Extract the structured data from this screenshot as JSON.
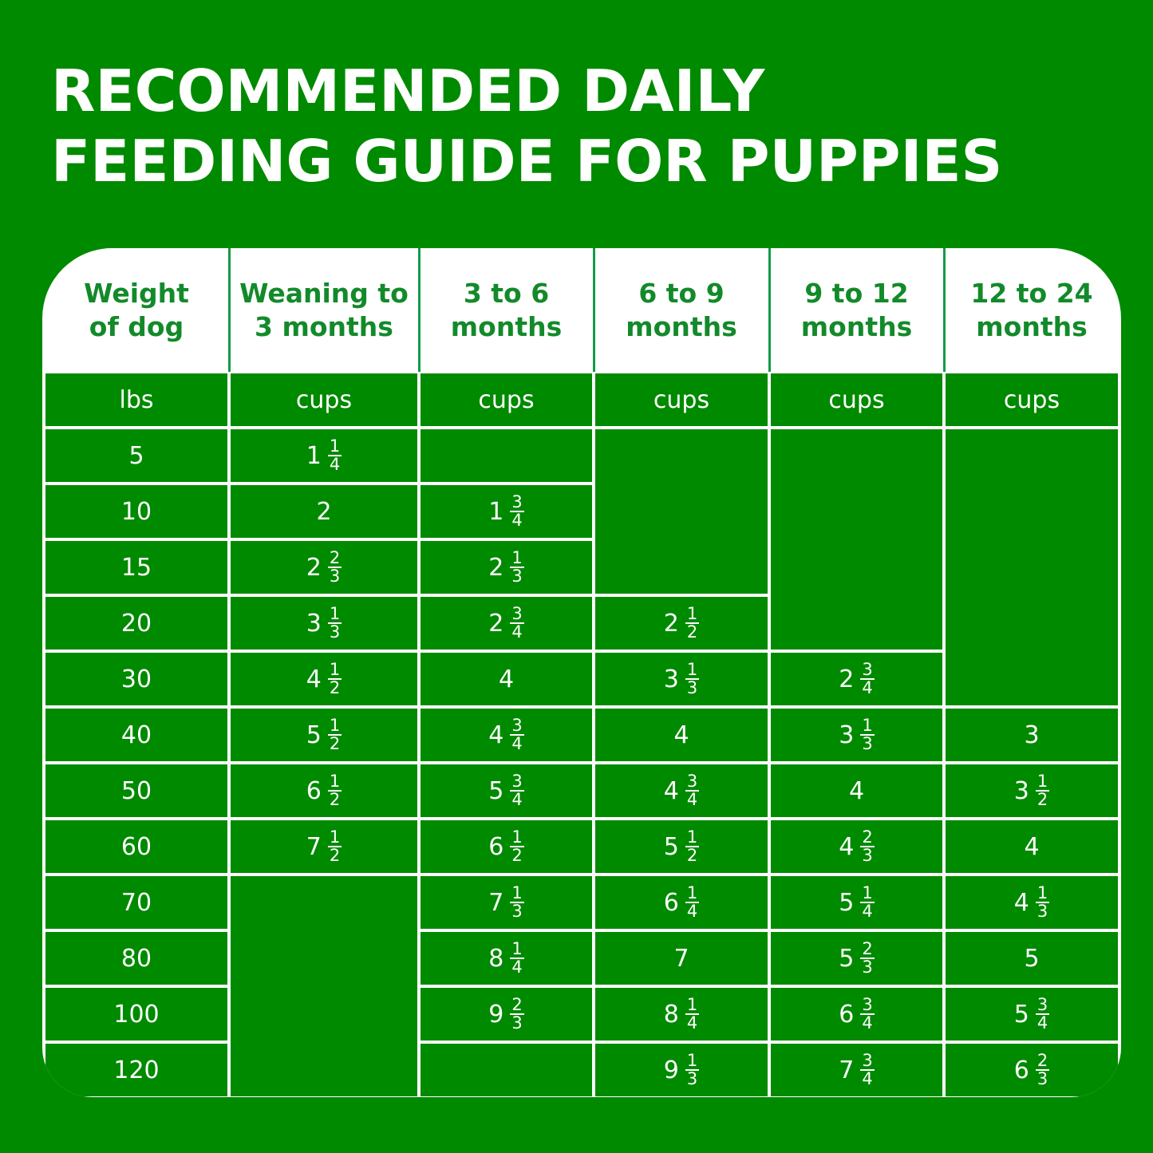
{
  "title": {
    "line1": "RECOMMENDED DAILY",
    "line2": "FEEDING GUIDE FOR PUPPIES"
  },
  "colors": {
    "background": "#008a00",
    "table_lines": "#ffffff",
    "header_text": "#138a2a"
  },
  "table": {
    "headers": [
      [
        "Weight",
        "of dog"
      ],
      [
        "Weaning to",
        "3 months"
      ],
      [
        "3 to 6",
        "months"
      ],
      [
        "6 to 9",
        "months"
      ],
      [
        "9 to 12",
        "months"
      ],
      [
        "12 to 24",
        "months"
      ]
    ],
    "units": [
      "lbs",
      "cups",
      "cups",
      "cups",
      "cups",
      "cups"
    ],
    "rows": [
      {
        "weight": "5",
        "values": [
          {
            "whole": "1",
            "num": "1",
            "den": "4"
          },
          null,
          null,
          null,
          null
        ]
      },
      {
        "weight": "10",
        "values": [
          {
            "whole": "2"
          },
          {
            "whole": "1",
            "num": "3",
            "den": "4"
          },
          null,
          null,
          null
        ]
      },
      {
        "weight": "15",
        "values": [
          {
            "whole": "2",
            "num": "2",
            "den": "3"
          },
          {
            "whole": "2",
            "num": "1",
            "den": "3"
          },
          null,
          null,
          null
        ]
      },
      {
        "weight": "20",
        "values": [
          {
            "whole": "3",
            "num": "1",
            "den": "3"
          },
          {
            "whole": "2",
            "num": "3",
            "den": "4"
          },
          {
            "whole": "2",
            "num": "1",
            "den": "2"
          },
          null,
          null
        ]
      },
      {
        "weight": "30",
        "values": [
          {
            "whole": "4",
            "num": "1",
            "den": "2"
          },
          {
            "whole": "4"
          },
          {
            "whole": "3",
            "num": "1",
            "den": "3"
          },
          {
            "whole": "2",
            "num": "3",
            "den": "4"
          },
          null
        ]
      },
      {
        "weight": "40",
        "values": [
          {
            "whole": "5",
            "num": "1",
            "den": "2"
          },
          {
            "whole": "4",
            "num": "3",
            "den": "4"
          },
          {
            "whole": "4"
          },
          {
            "whole": "3",
            "num": "1",
            "den": "3"
          },
          {
            "whole": "3"
          }
        ]
      },
      {
        "weight": "50",
        "values": [
          {
            "whole": "6",
            "num": "1",
            "den": "2"
          },
          {
            "whole": "5",
            "num": "3",
            "den": "4"
          },
          {
            "whole": "4",
            "num": "3",
            "den": "4"
          },
          {
            "whole": "4"
          },
          {
            "whole": "3",
            "num": "1",
            "den": "2"
          }
        ]
      },
      {
        "weight": "60",
        "values": [
          {
            "whole": "7",
            "num": "1",
            "den": "2"
          },
          {
            "whole": "6",
            "num": "1",
            "den": "2"
          },
          {
            "whole": "5",
            "num": "1",
            "den": "2"
          },
          {
            "whole": "4",
            "num": "2",
            "den": "3"
          },
          {
            "whole": "4"
          }
        ]
      },
      {
        "weight": "70",
        "values": [
          null,
          {
            "whole": "7",
            "num": "1",
            "den": "3"
          },
          {
            "whole": "6",
            "num": "1",
            "den": "4"
          },
          {
            "whole": "5",
            "num": "1",
            "den": "4"
          },
          {
            "whole": "4",
            "num": "1",
            "den": "3"
          }
        ]
      },
      {
        "weight": "80",
        "values": [
          null,
          {
            "whole": "8",
            "num": "1",
            "den": "4"
          },
          {
            "whole": "7"
          },
          {
            "whole": "5",
            "num": "2",
            "den": "3"
          },
          {
            "whole": "5"
          }
        ]
      },
      {
        "weight": "100",
        "values": [
          null,
          {
            "whole": "9",
            "num": "2",
            "den": "3"
          },
          {
            "whole": "8",
            "num": "1",
            "den": "4"
          },
          {
            "whole": "6",
            "num": "3",
            "den": "4"
          },
          {
            "whole": "5",
            "num": "3",
            "den": "4"
          }
        ]
      },
      {
        "weight": "120",
        "values": [
          null,
          null,
          {
            "whole": "9",
            "num": "1",
            "den": "3"
          },
          {
            "whole": "7",
            "num": "3",
            "den": "4"
          },
          {
            "whole": "6",
            "num": "2",
            "den": "3"
          }
        ]
      }
    ]
  }
}
